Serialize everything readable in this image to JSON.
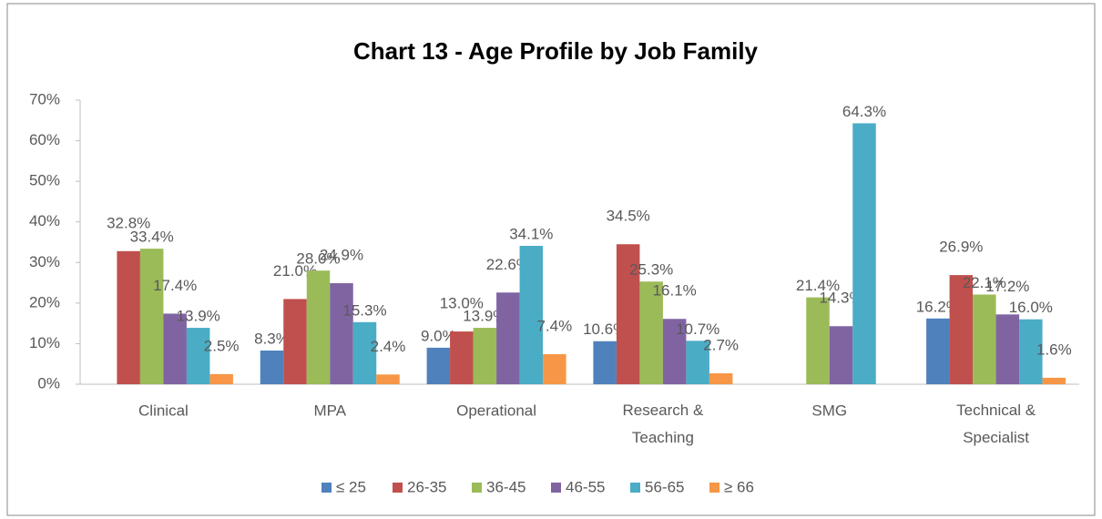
{
  "chart_data": {
    "type": "bar",
    "title": "Chart 13 - Age Profile by Job Family",
    "categories": [
      "Clinical",
      "MPA",
      "Operational",
      "Research & Teaching",
      "SMG",
      "Technical & Specialist"
    ],
    "series": [
      {
        "name": "≤ 25",
        "color": "#4f81bd",
        "values": [
          null,
          8.3,
          9.0,
          10.6,
          null,
          16.2
        ],
        "value_labels": [
          null,
          "8.3%",
          "9.0%",
          "10.6%",
          null,
          "16.2%"
        ]
      },
      {
        "name": "26-35",
        "color": "#c0504d",
        "values": [
          32.8,
          21.0,
          13.0,
          34.5,
          null,
          26.9
        ],
        "value_labels": [
          "32.8%",
          "21.0%",
          "13.0%",
          "34.5%",
          null,
          "26.9%"
        ]
      },
      {
        "name": "36-45",
        "color": "#9bbb59",
        "values": [
          33.4,
          28.0,
          13.9,
          25.3,
          21.4,
          22.1
        ],
        "value_labels": [
          "33.4%",
          "28.0%",
          "13.9%",
          "25.3%",
          "21.4%",
          "22.1%"
        ]
      },
      {
        "name": "46-55",
        "color": "#8064a2",
        "values": [
          17.4,
          24.9,
          22.6,
          16.1,
          14.3,
          17.2
        ],
        "value_labels": [
          "17.4%",
          "24.9%",
          "22.6%",
          "16.1%",
          "14.3%",
          "17.2%"
        ]
      },
      {
        "name": "56-65",
        "color": "#4bacc6",
        "values": [
          13.9,
          15.3,
          34.1,
          10.7,
          64.3,
          16.0
        ],
        "value_labels": [
          "13.9%",
          "15.3%",
          "34.1%",
          "10.7%",
          "64.3%",
          "16.0%"
        ]
      },
      {
        "name": "≥ 66",
        "color": "#f79646",
        "values": [
          2.5,
          2.4,
          7.4,
          2.7,
          null,
          1.6
        ],
        "value_labels": [
          "2.5%",
          "2.4%",
          "7.4%",
          "2.7%",
          null,
          "1.6%"
        ]
      }
    ],
    "ylim": [
      0,
      70
    ],
    "yticks": [
      {
        "value": 0,
        "label": "0%"
      },
      {
        "value": 10,
        "label": "10%"
      },
      {
        "value": 20,
        "label": "20%"
      },
      {
        "value": 30,
        "label": "30%"
      },
      {
        "value": 40,
        "label": "40%"
      },
      {
        "value": 50,
        "label": "50%"
      },
      {
        "value": 60,
        "label": "60%"
      },
      {
        "value": 70,
        "label": "70%"
      }
    ],
    "grid": false,
    "legend": "bottom"
  }
}
